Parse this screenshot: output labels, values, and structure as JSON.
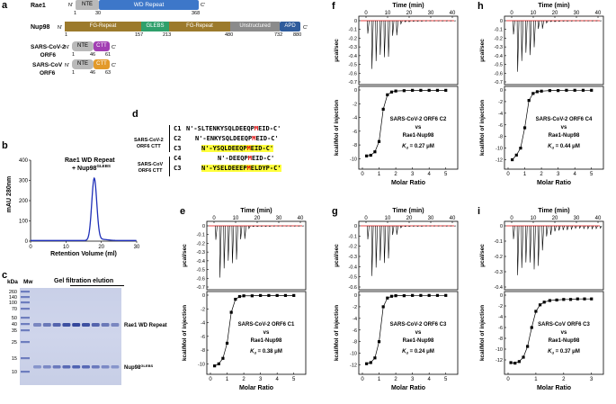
{
  "panels": {
    "a": {
      "letter": "a",
      "proteins": [
        {
          "name": "Rae1",
          "n": "N'",
          "c": "C'",
          "domains": [
            {
              "label": "NTE",
              "color": "#b9b9b9"
            },
            {
              "label": "WD Repeat",
              "color": "#3d77c9"
            }
          ],
          "ticks": [
            "1",
            "30",
            "368"
          ]
        },
        {
          "name": "Nup98",
          "n": "N'",
          "c": "C'",
          "domains": [
            {
              "label": "FG-Repeat",
              "color": "#9c7a2c"
            },
            {
              "label": "GLEBS",
              "color": "#2fa06b"
            },
            {
              "label": "FG-Repeat",
              "color": "#9c7a2c"
            },
            {
              "label": "Unstructured",
              "color": "#8b8b8b"
            },
            {
              "label": "APD",
              "color": "#2f5c9c"
            }
          ],
          "ticks": [
            "1",
            "157",
            "213",
            "480",
            "732",
            "880"
          ]
        },
        {
          "name": "SARS-CoV-2",
          "name2": "ORF6",
          "n": "N'",
          "c": "C'",
          "domains": [
            {
              "label": "NTE",
              "color": "#b9b9b9"
            },
            {
              "label": "CTT",
              "color": "#a23fb3"
            }
          ],
          "ticks": [
            "1",
            "46",
            "61"
          ]
        },
        {
          "name": "SARS-CoV",
          "name2": "ORF6",
          "n": "N'",
          "c": "C'",
          "domains": [
            {
              "label": "NTE",
              "color": "#b9b9b9"
            },
            {
              "label": "CTT",
              "color": "#e39a2a"
            }
          ],
          "ticks": [
            "1",
            "46",
            "63"
          ]
        }
      ]
    },
    "b": {
      "letter": "b",
      "legend1": "Rae1 WD Repeat",
      "legend2": "+ Nup98",
      "legend2_sup": "GLEBS",
      "chart_data": {
        "type": "line",
        "xlabel": "Retention Volume (ml)",
        "ylabel": "mAU 280nm",
        "xlim": [
          0,
          30
        ],
        "ylim": [
          0,
          400
        ],
        "xticks": [
          "0",
          "10",
          "20",
          "30"
        ],
        "yticks": [
          "0",
          "100",
          "200",
          "300",
          "400"
        ],
        "color": "#1f2fb8",
        "peak_x": 18.0,
        "peak_y": 305,
        "peak_width": 1.0
      }
    },
    "c": {
      "letter": "c",
      "kda_label": "kDa",
      "mw_label": "Mw",
      "title": "Gel filtration elution",
      "markers": [
        "260",
        "140",
        "100",
        "70",
        "50",
        "40",
        "35",
        "25",
        "15",
        "10"
      ],
      "band1_label": "Rae1 WD Repeat",
      "band2_label": "Nup98",
      "band2_sup": "GLEBS"
    },
    "d": {
      "letter": "d",
      "group1": [
        "SARS-CoV-2",
        "ORF6 CTT"
      ],
      "group2": [
        "SARS-CoV",
        "ORF6 CTT"
      ],
      "rows": [
        {
          "id": "C1",
          "pre": "N'-SLTENKYSQLDEEQP",
          "m": "M",
          "post": "EID-C'",
          "highlight": false
        },
        {
          "id": "C2",
          "pre": "N'-ENKYSQLDEEQP",
          "m": "M",
          "post": "EID-C'",
          "highlight": false
        },
        {
          "id": "C3",
          "pre": "N'-YSQLDEEQP",
          "m": "M",
          "post": "EID-C'",
          "highlight": true
        },
        {
          "id": "C4",
          "pre": "N'-DEEQP",
          "m": "M",
          "post": "EID-C'",
          "highlight": false
        },
        {
          "id": "C3",
          "pre": "N'-YSELDEEEP",
          "m": "M",
          "post": "ELDYP-C'",
          "highlight": true
        }
      ]
    },
    "itc": [
      {
        "letter": "e",
        "line1": "SARS-CoV-2 ORF6 C1",
        "line2": "vs",
        "line3": "Rae1-Nup98",
        "kd_value": "0.38 μM",
        "xticks": [
          "0",
          "1",
          "2",
          "3",
          "4",
          "5"
        ],
        "xmax": 5.5,
        "yticks_top": [
          "0",
          "-0.1",
          "-0.2",
          "-0.3",
          "-0.4",
          "-0.5",
          "-0.6",
          "-0.7"
        ],
        "yticks_bot": [
          "0",
          "-2",
          "-4",
          "-6",
          "-8",
          "-10"
        ],
        "ymin_bot": -11,
        "chart_data": {
          "type": "scatter",
          "x": [
            0.25,
            0.5,
            0.75,
            1.0,
            1.25,
            1.5,
            1.75,
            2.0,
            2.5,
            3.0,
            3.5,
            4.0,
            4.5,
            5.0
          ],
          "y": [
            -10.3,
            -10.0,
            -9.2,
            -7.0,
            -2.5,
            -0.6,
            -0.2,
            -0.1,
            -0.1,
            -0.05,
            -0.05,
            -0.05,
            -0.05,
            -0.05
          ]
        }
      },
      {
        "letter": "f",
        "line1": "SARS-CoV-2 ORF6 C2",
        "line2": "vs",
        "line3": "Rae1-Nup98",
        "kd_value": "0.27 μM",
        "xticks": [
          "0",
          "1",
          "2",
          "3",
          "4",
          "5"
        ],
        "xmax": 5.5,
        "yticks_top": [
          "0",
          "-0.1",
          "-0.2",
          "-0.3",
          "-0.4",
          "-0.5",
          "-0.6",
          "-0.7"
        ],
        "yticks_bot": [
          "0",
          "-2",
          "-4",
          "-6",
          "-8",
          "-10"
        ],
        "ymin_bot": -11,
        "chart_data": {
          "type": "scatter",
          "x": [
            0.25,
            0.5,
            0.75,
            1.0,
            1.25,
            1.5,
            1.75,
            2.0,
            2.5,
            3.0,
            3.5,
            4.0,
            4.5,
            5.0
          ],
          "y": [
            -9.6,
            -9.5,
            -9.0,
            -7.5,
            -2.8,
            -0.7,
            -0.3,
            -0.15,
            -0.1,
            -0.05,
            -0.05,
            -0.05,
            -0.05,
            -0.05
          ]
        }
      },
      {
        "letter": "g",
        "line1": "SARS-CoV-2 ORF6 C3",
        "line2": "vs",
        "line3": "Rae1-Nup98",
        "kd_value": "0.24 μM",
        "xticks": [
          "0",
          "1",
          "2",
          "3",
          "4",
          "5"
        ],
        "xmax": 5.5,
        "yticks_top": [
          "0",
          "-0.1",
          "-0.2",
          "-0.3",
          "-0.4",
          "-0.5",
          "-0.6"
        ],
        "yticks_bot": [
          "0",
          "-2",
          "-4",
          "-6",
          "-8",
          "-10",
          "-12"
        ],
        "ymin_bot": -13,
        "chart_data": {
          "type": "scatter",
          "x": [
            0.25,
            0.5,
            0.75,
            1.0,
            1.25,
            1.5,
            1.75,
            2.0,
            2.5,
            3.0,
            3.5,
            4.0,
            4.5,
            5.0
          ],
          "y": [
            -11.8,
            -11.6,
            -10.8,
            -8.0,
            -2.0,
            -0.5,
            -0.2,
            -0.1,
            -0.1,
            -0.05,
            -0.05,
            -0.05,
            -0.05,
            -0.05
          ]
        }
      },
      {
        "letter": "h",
        "line1": "SARS-CoV-2 ORF6 C4",
        "line2": "vs",
        "line3": "Rae1-Nup98",
        "kd_value": "0.44 μM",
        "xticks": [
          "0",
          "1",
          "2",
          "3",
          "4",
          "5"
        ],
        "xmax": 5.5,
        "yticks_top": [
          "0",
          "-0.1",
          "-0.2",
          "-0.3",
          "-0.4",
          "-0.5",
          "-0.6",
          "-0.7"
        ],
        "yticks_bot": [
          "0",
          "-2",
          "-4",
          "-6",
          "-8",
          "-10",
          "-12"
        ],
        "ymin_bot": -13,
        "chart_data": {
          "type": "scatter",
          "x": [
            0.25,
            0.5,
            0.75,
            1.0,
            1.25,
            1.5,
            1.75,
            2.0,
            2.5,
            3.0,
            3.5,
            4.0,
            4.5,
            5.0
          ],
          "y": [
            -12.0,
            -11.2,
            -10.0,
            -6.5,
            -1.8,
            -0.6,
            -0.3,
            -0.2,
            -0.1,
            -0.1,
            -0.05,
            -0.05,
            -0.05,
            -0.05
          ]
        }
      },
      {
        "letter": "i",
        "line1": "SARS-CoV ORF6 C3",
        "line2": "vs",
        "line3": "Rae1-Nup98",
        "kd_value": "0.37 μM",
        "xticks": [
          "0",
          "1",
          "2",
          "3"
        ],
        "xmax": 3.3,
        "yticks_top": [
          "0",
          "-0.1",
          "-0.2",
          "-0.3",
          "-0.4"
        ],
        "yticks_bot": [
          "0",
          "-2",
          "-4",
          "-6",
          "-8",
          "-10",
          "-12"
        ],
        "ymin_bot": -14,
        "chart_data": {
          "type": "scatter",
          "x": [
            0.1,
            0.25,
            0.4,
            0.55,
            0.7,
            0.85,
            1.0,
            1.15,
            1.3,
            1.5,
            1.75,
            2.0,
            2.25,
            2.5,
            2.75,
            3.0
          ],
          "y": [
            -12.5,
            -12.6,
            -12.3,
            -11.5,
            -9.5,
            -6.0,
            -3.0,
            -1.8,
            -1.3,
            -1.0,
            -0.9,
            -0.8,
            -0.8,
            -0.7,
            -0.7,
            -0.7
          ]
        }
      }
    ],
    "itc_common": {
      "time_label": "Time (min)",
      "time_ticks": [
        "0",
        "10",
        "20",
        "30",
        "40"
      ],
      "ylabel_top": "μcal/sec",
      "ylabel_bot": "kcal/Mol of injection",
      "xlabel": "Molar Ratio",
      "kd_prefix": "K",
      "kd_sub": "d",
      "kd_eq": " = "
    }
  }
}
